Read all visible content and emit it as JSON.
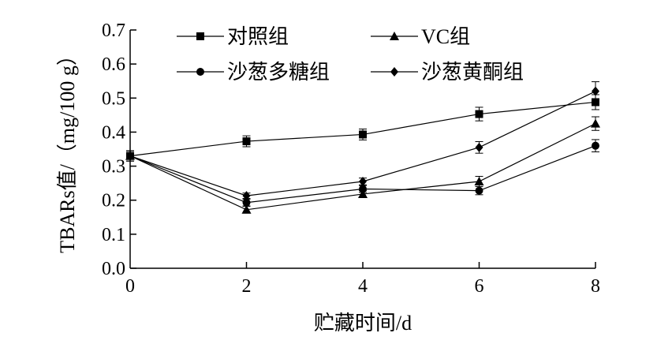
{
  "chart_data": {
    "type": "line",
    "title": "",
    "xlabel": "贮藏时间/d",
    "ylabel": "TBARs值/（mg/100 g）",
    "x": [
      0,
      2,
      4,
      6,
      8
    ],
    "xlim": [
      0,
      8
    ],
    "ylim": [
      0.0,
      0.7
    ],
    "xticks": [
      "0",
      "2",
      "4",
      "6",
      "8"
    ],
    "yticks": [
      "0.0",
      "0.1",
      "0.2",
      "0.3",
      "0.4",
      "0.5",
      "0.6",
      "0.7"
    ],
    "grid": false,
    "legend_position": "top",
    "series": [
      {
        "name": "对照组",
        "marker": "square",
        "values": [
          0.33,
          0.373,
          0.393,
          0.453,
          0.488
        ],
        "errors": [
          0.015,
          0.016,
          0.016,
          0.02,
          0.022
        ]
      },
      {
        "name": "VC组",
        "marker": "triangle",
        "values": [
          0.33,
          0.172,
          0.218,
          0.255,
          0.425
        ],
        "errors": [
          0.015,
          0.01,
          0.01,
          0.015,
          0.02
        ]
      },
      {
        "name": "沙葱多糖组",
        "marker": "circle",
        "values": [
          0.33,
          0.193,
          0.233,
          0.228,
          0.36
        ],
        "errors": [
          0.015,
          0.01,
          0.01,
          0.012,
          0.018
        ]
      },
      {
        "name": "沙葱黄酮组",
        "marker": "diamond",
        "values": [
          0.33,
          0.213,
          0.255,
          0.355,
          0.52
        ],
        "errors": [
          0.015,
          0.008,
          0.01,
          0.017,
          0.028
        ]
      }
    ]
  }
}
